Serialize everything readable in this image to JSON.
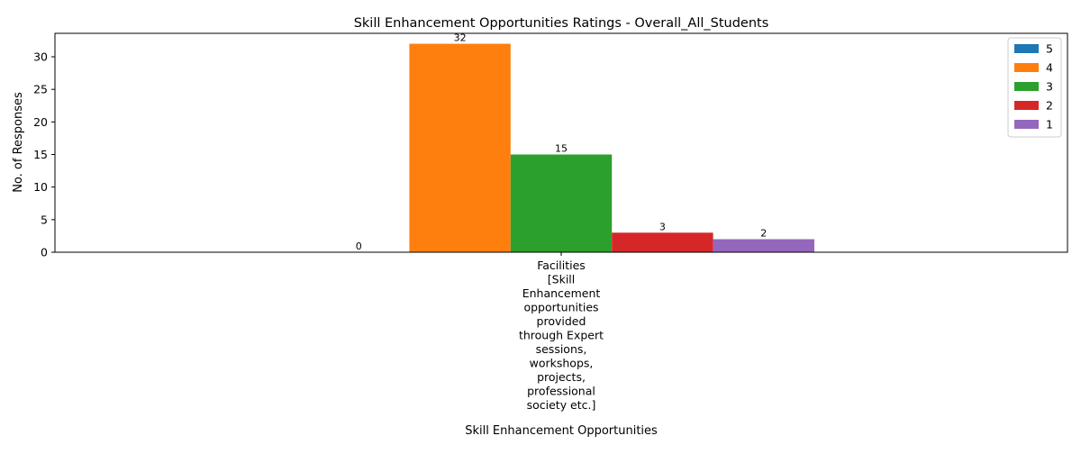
{
  "chart_data": {
    "type": "bar",
    "title": "Skill Enhancement Opportunities Ratings - Overall_All_Students",
    "xlabel": "Skill Enhancement Opportunities",
    "ylabel": "No. of Responses",
    "category_label_lines": [
      "Facilities",
      "[Skill",
      "Enhancement",
      "opportunities",
      "provided",
      "through Expert",
      "sessions,",
      "workshops,",
      "projects,",
      "professional",
      "society etc.]"
    ],
    "categories": [
      "Facilities [Skill Enhancement opportunities provided through Expert sessions, workshops, projects, professional society etc.]"
    ],
    "series": [
      {
        "name": "5",
        "values": [
          0
        ],
        "color": "#1f77b4"
      },
      {
        "name": "4",
        "values": [
          32
        ],
        "color": "#ff7f0e"
      },
      {
        "name": "3",
        "values": [
          15
        ],
        "color": "#2ca02c"
      },
      {
        "name": "2",
        "values": [
          3
        ],
        "color": "#d62728"
      },
      {
        "name": "1",
        "values": [
          2
        ],
        "color": "#9467bd"
      }
    ],
    "yticks": [
      0,
      5,
      10,
      15,
      20,
      25,
      30
    ],
    "ylim": [
      0,
      33.6
    ],
    "legend_position": "top-right",
    "grid": false
  }
}
